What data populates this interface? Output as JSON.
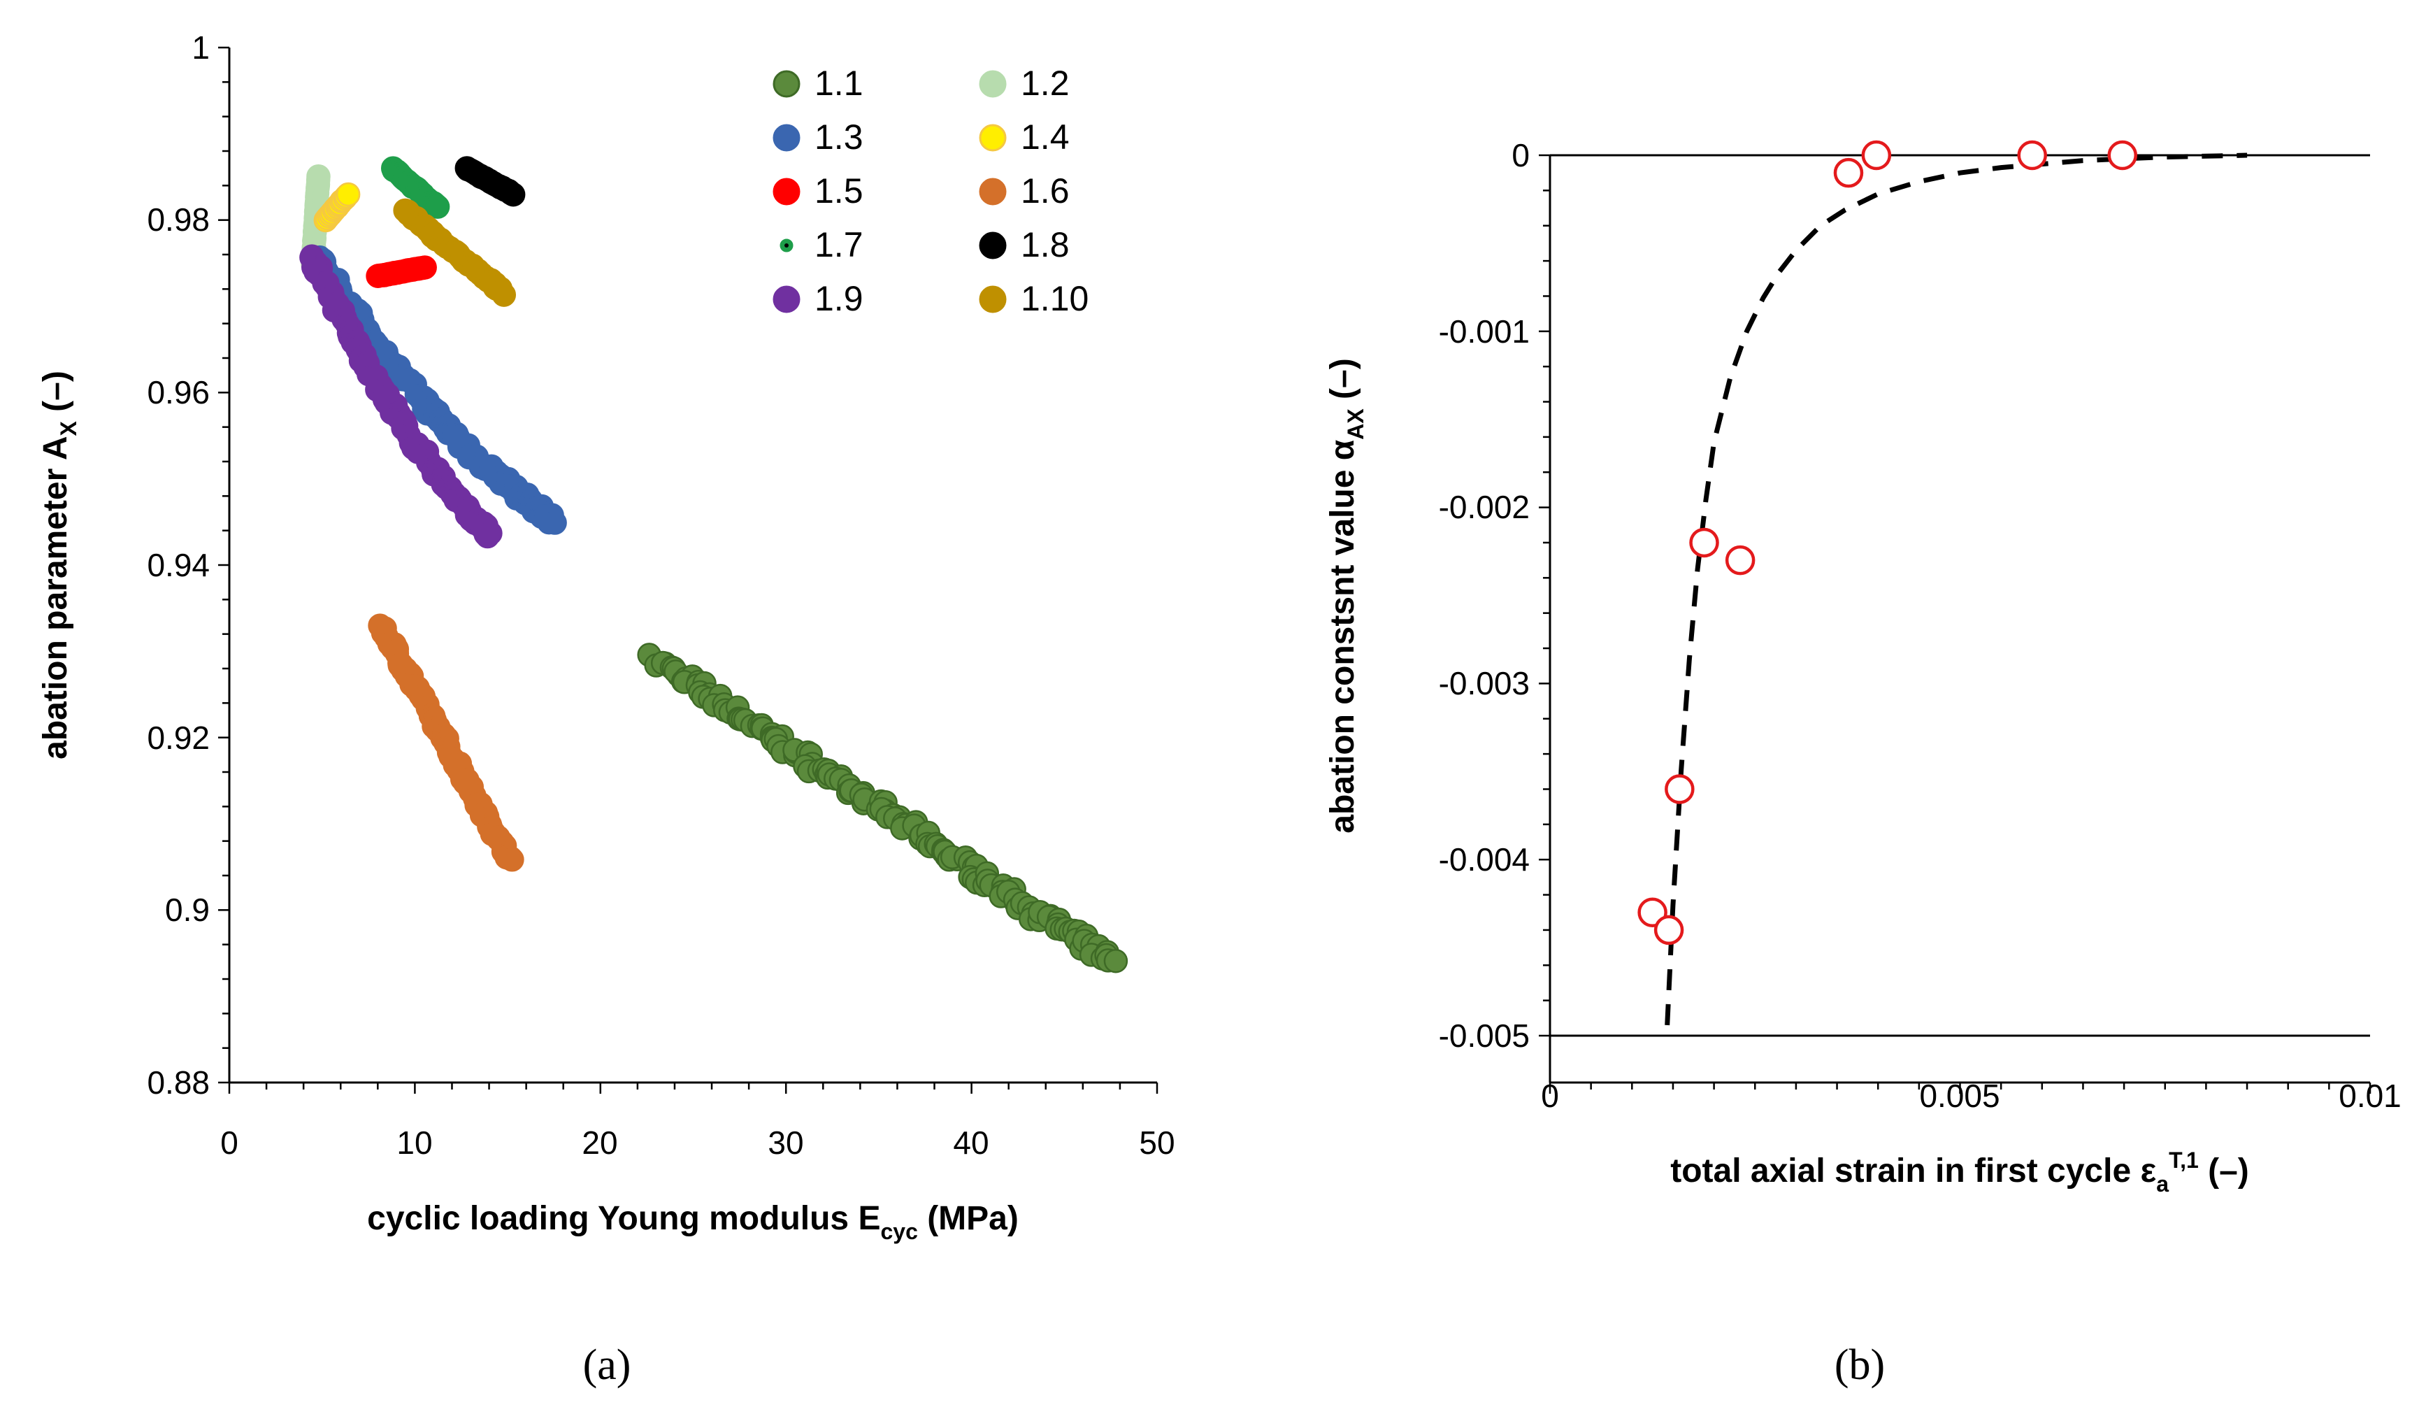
{
  "chart_data": [
    {
      "type": "scatter",
      "panel": "a",
      "xlabel": "cyclic loading Young modulus E",
      "xlabel_sub": "cyc",
      "xlabel_unit": " (MPa)",
      "ylabel": "abation parameter A",
      "ylabel_sub": "X",
      "ylabel_unit": " (–)",
      "xlim": [
        0,
        50
      ],
      "ylim": [
        0.88,
        1
      ],
      "xticks": [
        "0",
        "10",
        "20",
        "30",
        "40",
        "50"
      ],
      "yticks": [
        "0.88",
        "0.9",
        "0.92",
        "0.94",
        "0.96",
        "0.98",
        "1"
      ],
      "series": [
        {
          "name": "1.1",
          "color": "#5b8a3c",
          "edge": "#3e6a26",
          "x0": 23,
          "y0": 0.929,
          "x1": 47.5,
          "y1": 0.894,
          "n": 150
        },
        {
          "name": "1.2",
          "color": "#b7dcae",
          "edge": "#b7dcae",
          "x0": 4.5,
          "y0": 0.975,
          "x1": 4.8,
          "y1": 0.985,
          "n": 30
        },
        {
          "name": "1.3",
          "color": "#3a66b0",
          "edge": "#3a66b0",
          "x0": 4.6,
          "y0": 0.976,
          "x1": 17.5,
          "y1": 0.945,
          "n": 120
        },
        {
          "name": "1.4",
          "color": "#ffee00",
          "edge": "#f5c842",
          "x0": 5.2,
          "y0": 0.98,
          "x1": 6.4,
          "y1": 0.983,
          "n": 15
        },
        {
          "name": "1.5",
          "color": "#ff0000",
          "edge": "#ff0000",
          "x0": 8.0,
          "y0": 0.9735,
          "x1": 10.5,
          "y1": 0.9745,
          "n": 25
        },
        {
          "name": "1.6",
          "color": "#d4702a",
          "edge": "#d4702a",
          "x0": 8.2,
          "y0": 0.933,
          "x1": 15.2,
          "y1": 0.9055,
          "n": 80
        },
        {
          "name": "1.7",
          "color": "#1e9e4a",
          "edge": "#1e9e4a",
          "x0": 8.8,
          "y0": 0.986,
          "x1": 11.2,
          "y1": 0.9815,
          "n": 25
        },
        {
          "name": "1.8",
          "color": "#000000",
          "edge": "#000000",
          "x0": 12.8,
          "y0": 0.986,
          "x1": 15.3,
          "y1": 0.983,
          "n": 30
        },
        {
          "name": "1.9",
          "color": "#7030a0",
          "edge": "#7030a0",
          "x0": 4.4,
          "y0": 0.976,
          "x1": 14.0,
          "y1": 0.9435,
          "n": 120
        },
        {
          "name": "1.10",
          "color": "#bf9000",
          "edge": "#bf9000",
          "x0": 9.5,
          "y0": 0.981,
          "x1": 14.8,
          "y1": 0.9715,
          "n": 50
        }
      ]
    },
    {
      "type": "scatter",
      "panel": "b",
      "xlabel": "total axial strain in first cycle ε",
      "xlabel_sub": "a",
      "xlabel_sup": "T,1",
      "xlabel_unit": " (–)",
      "ylabel": "abation constsnt value α",
      "ylabel_sub": "AX",
      "ylabel_unit": " (–)",
      "xlim": [
        0,
        0.01
      ],
      "ylim": [
        -0.005,
        0
      ],
      "xticks": [
        "0",
        "0.005",
        "0.01"
      ],
      "yticks": [
        "-0.005",
        "-0.004",
        "-0.003",
        "-0.002",
        "-0.001",
        "0"
      ],
      "points": {
        "x": [
          0.00125,
          0.00145,
          0.00158,
          0.00188,
          0.00232,
          0.00364,
          0.00398,
          0.00588,
          0.00698
        ],
        "y": [
          -0.0043,
          -0.0044,
          -0.0036,
          -0.0022,
          -0.0023,
          -0.0001,
          0.0,
          0.0,
          0.0
        ],
        "color": "#e41a1c"
      },
      "fit": {
        "style": "dashed",
        "x": [
          0.00143,
          0.0015,
          0.0016,
          0.0017,
          0.0018,
          0.0019,
          0.002,
          0.0022,
          0.0024,
          0.0026,
          0.0028,
          0.003,
          0.0033,
          0.0036,
          0.004,
          0.0045,
          0.005,
          0.0055,
          0.006,
          0.0065,
          0.007,
          0.0075,
          0.008,
          0.0085
        ],
        "y": [
          -0.00494,
          -0.00426,
          -0.00349,
          -0.00286,
          -0.00235,
          -0.00196,
          -0.00163,
          -0.00126,
          -0.001,
          -0.00081,
          -0.00066,
          -0.00054,
          -0.0004,
          -0.00031,
          -0.00022,
          -0.00015,
          -0.0001,
          -7e-05,
          -5e-05,
          -3e-05,
          -2e-05,
          -1e-05,
          -5e-06,
          0.0
        ]
      }
    }
  ],
  "legend": {
    "placement": "top-right",
    "columns": 2
  },
  "captions": {
    "a": "(a)",
    "b": "(b)"
  }
}
